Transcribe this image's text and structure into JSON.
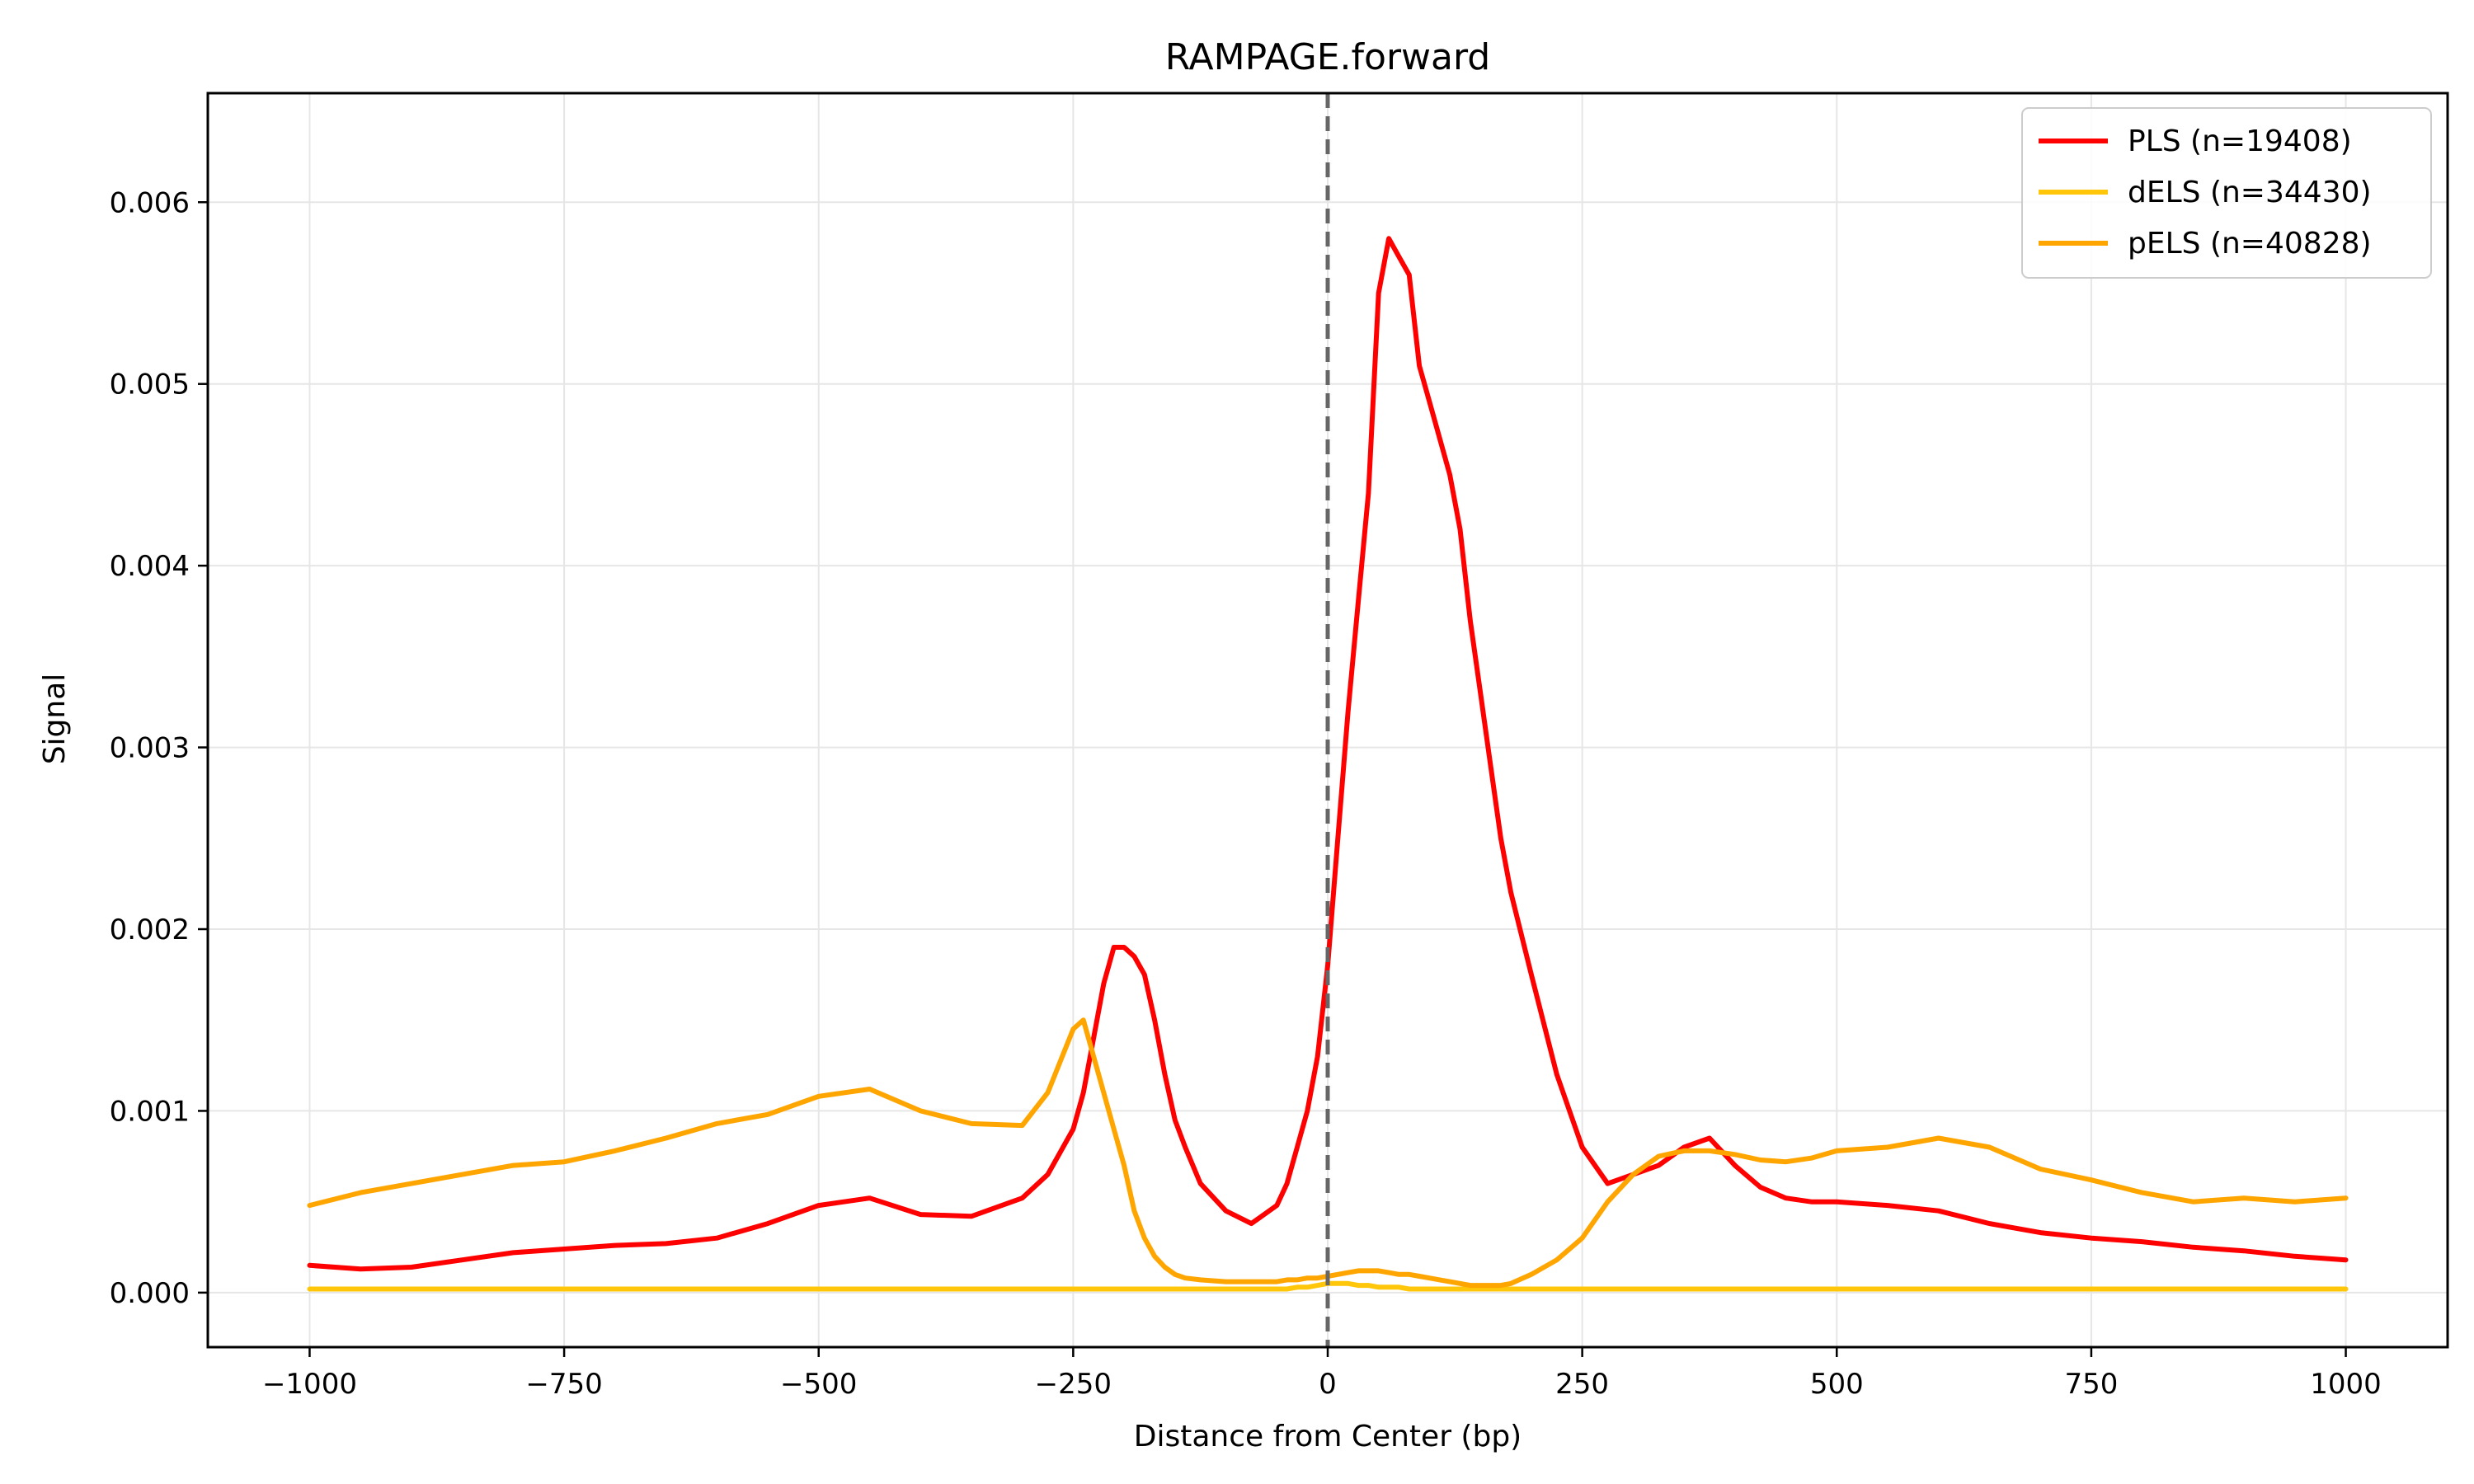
{
  "chart_data": {
    "type": "line",
    "title": "RAMPAGE.forward",
    "xlabel": "Distance from Center (bp)",
    "ylabel": "Signal",
    "xlim": [
      -1100,
      1100
    ],
    "ylim": [
      -0.0003,
      0.0066
    ],
    "xticks": [
      -1000,
      -750,
      -500,
      -250,
      0,
      250,
      500,
      750,
      1000
    ],
    "xtick_labels": [
      "−1000",
      "−750",
      "−500",
      "−250",
      "0",
      "250",
      "500",
      "750",
      "1000"
    ],
    "yticks": [
      0.0,
      0.001,
      0.002,
      0.003,
      0.004,
      0.005,
      0.006
    ],
    "ytick_labels": [
      "0.000",
      "0.001",
      "0.002",
      "0.003",
      "0.004",
      "0.005",
      "0.006"
    ],
    "grid": true,
    "legend_position": "top-right",
    "vline": {
      "x": 0,
      "style": "dashed",
      "color": "#666666"
    },
    "x": [
      -1000,
      -950,
      -900,
      -850,
      -800,
      -750,
      -700,
      -650,
      -600,
      -550,
      -500,
      -450,
      -400,
      -350,
      -300,
      -275,
      -250,
      -240,
      -230,
      -220,
      -210,
      -200,
      -190,
      -180,
      -170,
      -160,
      -150,
      -140,
      -125,
      -100,
      -75,
      -50,
      -40,
      -30,
      -20,
      -10,
      0,
      10,
      20,
      30,
      40,
      50,
      60,
      70,
      80,
      90,
      100,
      110,
      120,
      130,
      140,
      150,
      160,
      170,
      180,
      200,
      225,
      250,
      275,
      300,
      325,
      350,
      375,
      400,
      425,
      450,
      475,
      500,
      550,
      600,
      650,
      700,
      750,
      800,
      850,
      900,
      950,
      1000
    ],
    "series": [
      {
        "name": "PLS (n=19408)",
        "color": "#ff0000",
        "values": [
          0.00015,
          0.00013,
          0.00014,
          0.00018,
          0.00022,
          0.00024,
          0.00026,
          0.00027,
          0.0003,
          0.00038,
          0.00048,
          0.00052,
          0.00043,
          0.00042,
          0.00052,
          0.00065,
          0.0009,
          0.0011,
          0.0014,
          0.0017,
          0.0019,
          0.0019,
          0.00185,
          0.00175,
          0.0015,
          0.0012,
          0.00095,
          0.0008,
          0.0006,
          0.00045,
          0.00038,
          0.00048,
          0.0006,
          0.0008,
          0.001,
          0.0013,
          0.0018,
          0.0025,
          0.0032,
          0.0038,
          0.0044,
          0.0055,
          0.0058,
          0.0057,
          0.0056,
          0.0051,
          0.0049,
          0.0047,
          0.0045,
          0.0042,
          0.0037,
          0.0033,
          0.0029,
          0.0025,
          0.0022,
          0.00175,
          0.0012,
          0.0008,
          0.0006,
          0.00065,
          0.0007,
          0.0008,
          0.00085,
          0.0007,
          0.00058,
          0.00052,
          0.0005,
          0.0005,
          0.00048,
          0.00045,
          0.00038,
          0.00033,
          0.0003,
          0.00028,
          0.00025,
          0.00023,
          0.0002,
          0.00018
        ]
      },
      {
        "name": "dELS (n=34430)",
        "color": "#ffc60a",
        "values": [
          2e-05,
          2e-05,
          2e-05,
          2e-05,
          2e-05,
          2e-05,
          2e-05,
          2e-05,
          2e-05,
          2e-05,
          2e-05,
          2e-05,
          2e-05,
          2e-05,
          2e-05,
          2e-05,
          2e-05,
          2e-05,
          2e-05,
          2e-05,
          2e-05,
          2e-05,
          2e-05,
          2e-05,
          2e-05,
          2e-05,
          2e-05,
          2e-05,
          2e-05,
          2e-05,
          2e-05,
          2e-05,
          2e-05,
          3e-05,
          3e-05,
          4e-05,
          5e-05,
          5e-05,
          5e-05,
          4e-05,
          4e-05,
          3e-05,
          3e-05,
          3e-05,
          2e-05,
          2e-05,
          2e-05,
          2e-05,
          2e-05,
          2e-05,
          2e-05,
          2e-05,
          2e-05,
          2e-05,
          2e-05,
          2e-05,
          2e-05,
          2e-05,
          2e-05,
          2e-05,
          2e-05,
          2e-05,
          2e-05,
          2e-05,
          2e-05,
          2e-05,
          2e-05,
          2e-05,
          2e-05,
          2e-05,
          2e-05,
          2e-05,
          2e-05,
          2e-05,
          2e-05,
          2e-05,
          2e-05,
          2e-05
        ]
      },
      {
        "name": "pELS (n=40828)",
        "color": "#ffa500",
        "values": [
          0.00048,
          0.00055,
          0.0006,
          0.00065,
          0.0007,
          0.00072,
          0.00078,
          0.00085,
          0.00093,
          0.00098,
          0.00108,
          0.00112,
          0.001,
          0.00093,
          0.00092,
          0.0011,
          0.00145,
          0.0015,
          0.0013,
          0.0011,
          0.0009,
          0.0007,
          0.00045,
          0.0003,
          0.0002,
          0.00014,
          0.0001,
          8e-05,
          7e-05,
          6e-05,
          6e-05,
          6e-05,
          7e-05,
          7e-05,
          8e-05,
          8e-05,
          9e-05,
          0.0001,
          0.00011,
          0.00012,
          0.00012,
          0.00012,
          0.00011,
          0.0001,
          0.0001,
          9e-05,
          8e-05,
          7e-05,
          6e-05,
          5e-05,
          4e-05,
          4e-05,
          4e-05,
          4e-05,
          5e-05,
          0.0001,
          0.00018,
          0.0003,
          0.0005,
          0.00065,
          0.00075,
          0.00078,
          0.00078,
          0.00076,
          0.00073,
          0.00072,
          0.00074,
          0.00078,
          0.0008,
          0.00085,
          0.0008,
          0.00068,
          0.00062,
          0.00055,
          0.0005,
          0.00052,
          0.0005,
          0.00052
        ]
      }
    ]
  }
}
